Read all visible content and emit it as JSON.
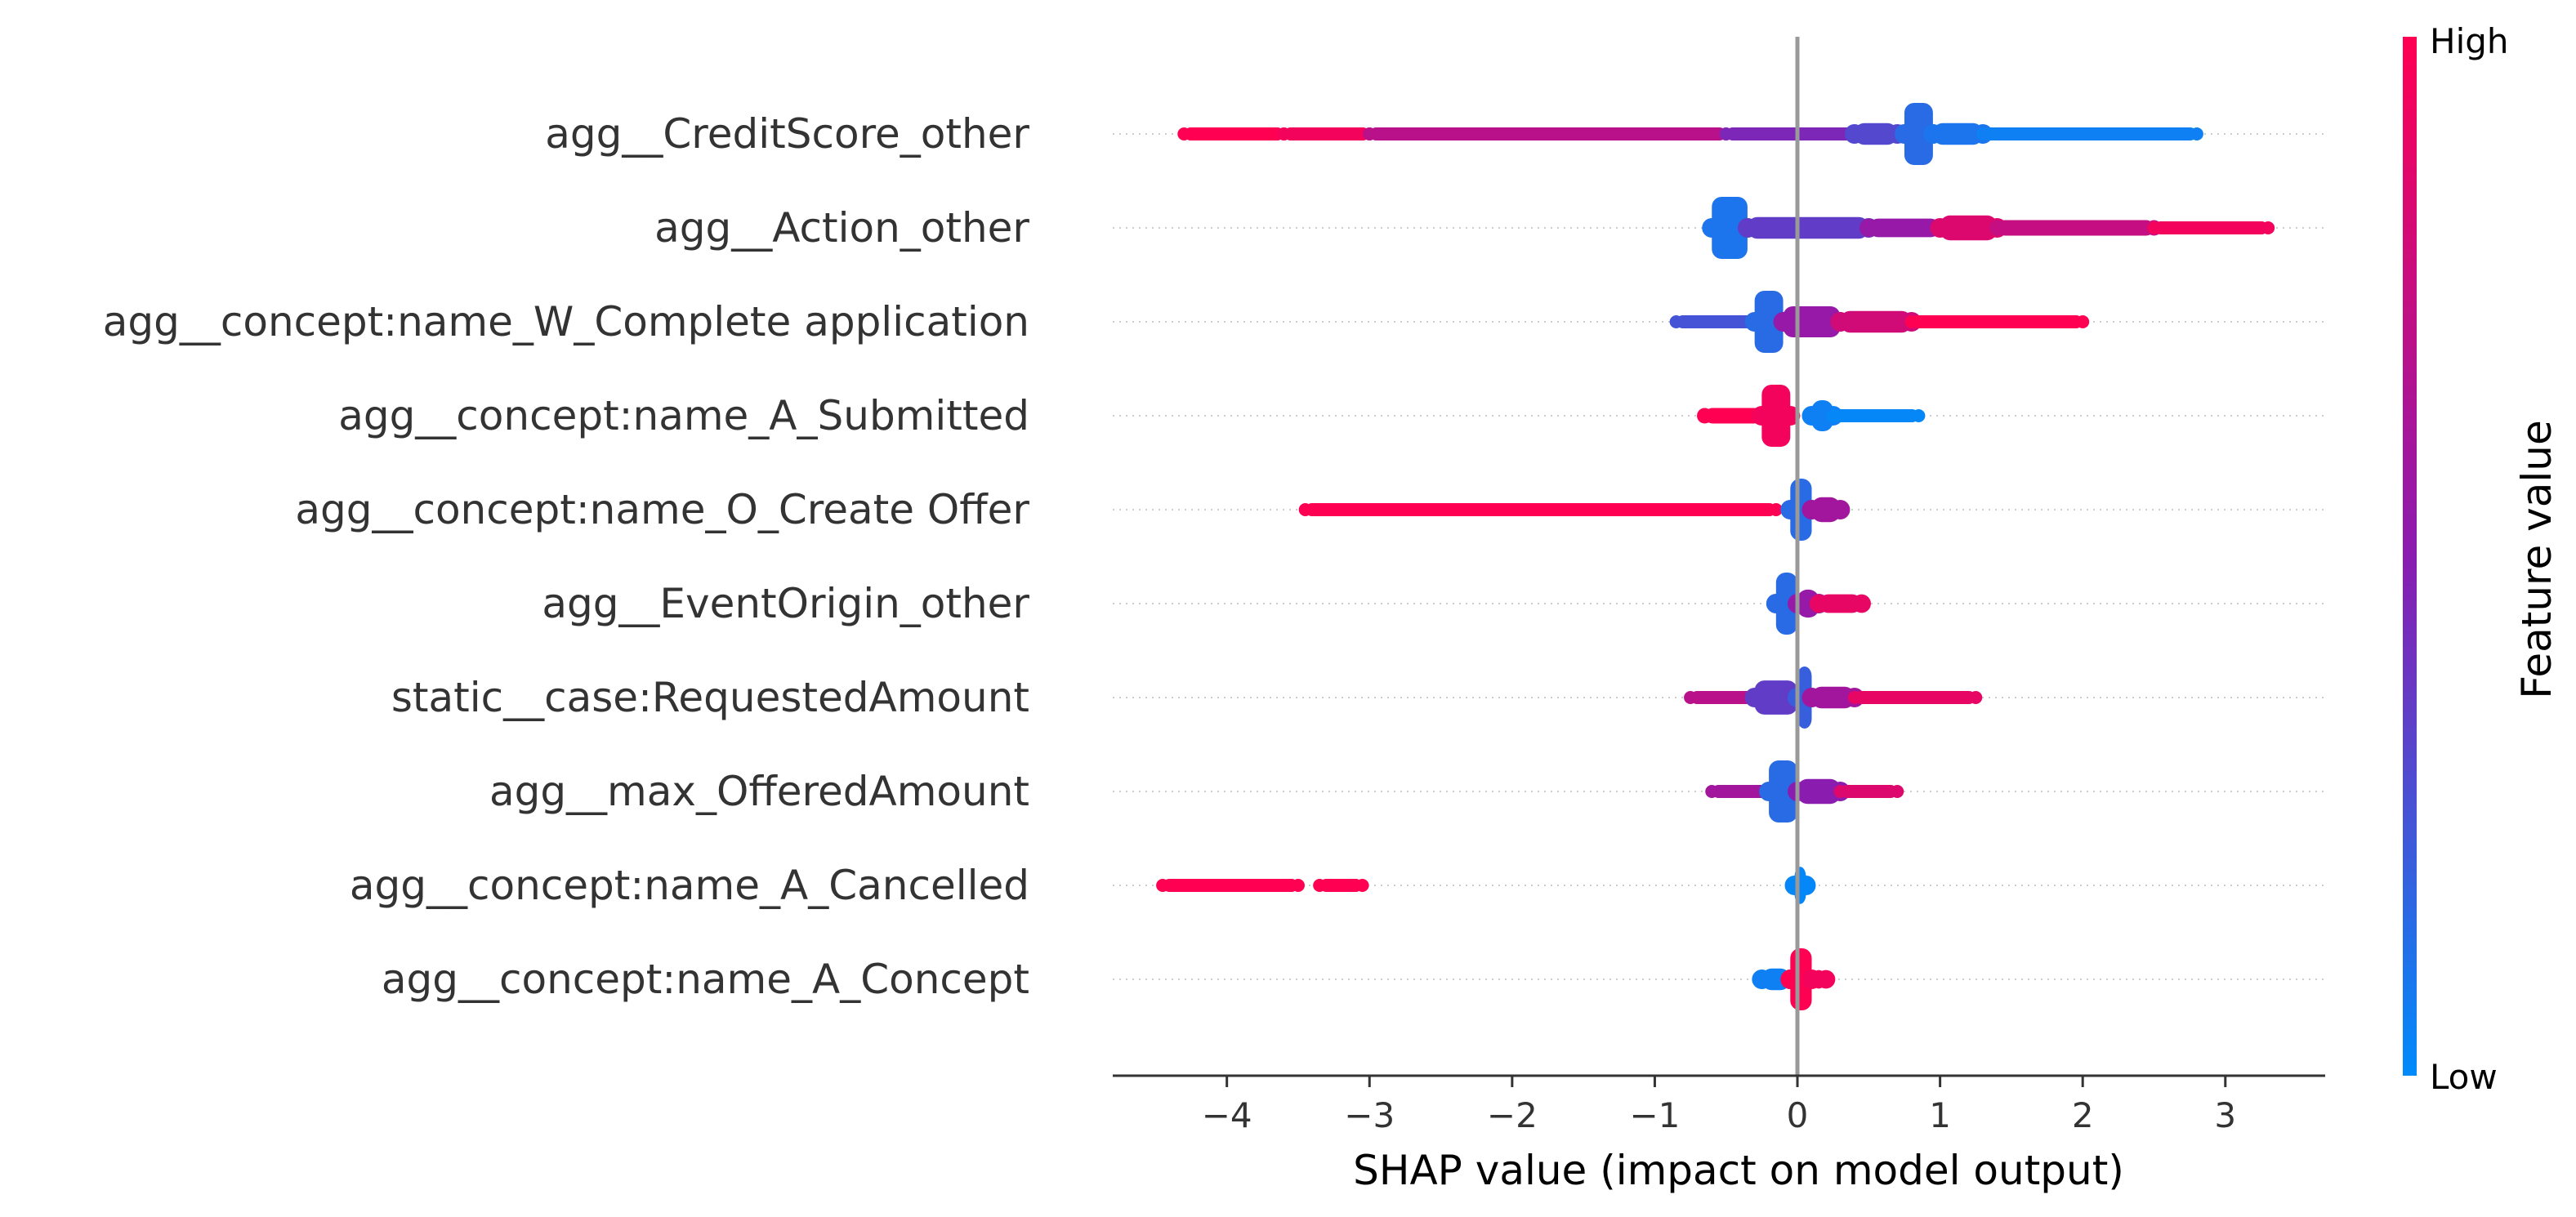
{
  "chart_data": {
    "type": "scatter",
    "subtype": "shap-beeswarm-summary",
    "title": "",
    "xlabel": "SHAP value (impact on model output)",
    "xlim": [
      -4.8,
      3.7
    ],
    "xticks": [
      -4,
      -3,
      -2,
      -1,
      0,
      1,
      2,
      3
    ],
    "xtick_labels": [
      "−4",
      "−3",
      "−2",
      "−1",
      "0",
      "1",
      "2",
      "3"
    ],
    "zero_line": 0,
    "grid": "dotted horizontal per feature row",
    "colorbar": {
      "label": "Feature value",
      "high_label": "High",
      "low_label": "Low",
      "high_color": "#ff0052",
      "mid_color": "#8a1cb0",
      "low_color": "#008bfb",
      "placement": "right"
    },
    "features": [
      {
        "name": "agg__CreditScore_other",
        "segments": [
          {
            "from": -4.3,
            "to": -3.6,
            "value": 1.0,
            "spread": 0.1
          },
          {
            "from": -3.6,
            "to": -3.0,
            "value": 0.95,
            "spread": 0.2
          },
          {
            "from": -3.0,
            "to": -0.5,
            "value": 0.7,
            "spread": 0.12
          },
          {
            "from": -0.5,
            "to": 0.4,
            "value": 0.45,
            "spread": 0.2
          },
          {
            "from": 0.4,
            "to": 0.7,
            "value": 0.3,
            "spread": 0.35
          },
          {
            "from": 0.75,
            "to": 0.95,
            "value": 0.15,
            "spread": 1.0
          },
          {
            "from": 0.95,
            "to": 1.3,
            "value": 0.1,
            "spread": 0.35
          },
          {
            "from": 1.3,
            "to": 2.8,
            "value": 0.05,
            "spread": 0.15
          }
        ]
      },
      {
        "name": "agg__Action_other",
        "segments": [
          {
            "from": -0.6,
            "to": -0.35,
            "value": 0.1,
            "spread": 1.0
          },
          {
            "from": -0.35,
            "to": 0.5,
            "value": 0.35,
            "spread": 0.35
          },
          {
            "from": 0.5,
            "to": 1.0,
            "value": 0.55,
            "spread": 0.3
          },
          {
            "from": 1.0,
            "to": 1.4,
            "value": 0.85,
            "spread": 0.4
          },
          {
            "from": 1.4,
            "to": 2.5,
            "value": 0.75,
            "spread": 0.25
          },
          {
            "from": 2.5,
            "to": 3.3,
            "value": 0.95,
            "spread": 0.15
          }
        ]
      },
      {
        "name": "agg__concept:name_W_Complete application",
        "segments": [
          {
            "from": -0.85,
            "to": -0.3,
            "value": 0.25,
            "spread": 0.2
          },
          {
            "from": -0.3,
            "to": -0.1,
            "value": 0.15,
            "spread": 1.0
          },
          {
            "from": -0.1,
            "to": 0.3,
            "value": 0.55,
            "spread": 0.5
          },
          {
            "from": 0.3,
            "to": 0.8,
            "value": 0.8,
            "spread": 0.35
          },
          {
            "from": 0.8,
            "to": 2.0,
            "value": 1.0,
            "spread": 0.18
          }
        ]
      },
      {
        "name": "agg__concept:name_A_Submitted",
        "segments": [
          {
            "from": -0.65,
            "to": -0.25,
            "value": 1.0,
            "spread": 0.25
          },
          {
            "from": -0.25,
            "to": -0.05,
            "value": 0.95,
            "spread": 1.0
          },
          {
            "from": 0.1,
            "to": 0.25,
            "value": 0.05,
            "spread": 0.5
          },
          {
            "from": 0.25,
            "to": 0.85,
            "value": 0.02,
            "spread": 0.2
          }
        ]
      },
      {
        "name": "agg__concept:name_O_Create Offer",
        "segments": [
          {
            "from": -3.45,
            "to": -0.15,
            "value": 1.0,
            "spread": 0.1
          },
          {
            "from": -0.05,
            "to": 0.1,
            "value": 0.15,
            "spread": 1.0
          },
          {
            "from": 0.1,
            "to": 0.3,
            "value": 0.6,
            "spread": 0.4
          }
        ]
      },
      {
        "name": "agg__EventOrigin_other",
        "segments": [
          {
            "from": -0.15,
            "to": 0.0,
            "value": 0.15,
            "spread": 1.0
          },
          {
            "from": 0.0,
            "to": 0.15,
            "value": 0.55,
            "spread": 0.45
          },
          {
            "from": 0.15,
            "to": 0.45,
            "value": 0.9,
            "spread": 0.3
          }
        ]
      },
      {
        "name": "static__case:RequestedAmount",
        "segments": [
          {
            "from": -0.75,
            "to": -0.3,
            "value": 0.7,
            "spread": 0.2
          },
          {
            "from": -0.3,
            "to": 0.0,
            "value": 0.35,
            "spread": 0.55
          },
          {
            "from": 0.0,
            "to": 0.1,
            "value": 0.2,
            "spread": 1.0
          },
          {
            "from": 0.1,
            "to": 0.4,
            "value": 0.6,
            "spread": 0.35
          },
          {
            "from": 0.4,
            "to": 1.25,
            "value": 0.9,
            "spread": 0.15
          }
        ]
      },
      {
        "name": "agg__max_OfferedAmount",
        "segments": [
          {
            "from": -0.6,
            "to": -0.2,
            "value": 0.6,
            "spread": 0.2
          },
          {
            "from": -0.2,
            "to": 0.0,
            "value": 0.15,
            "spread": 1.0
          },
          {
            "from": 0.0,
            "to": 0.3,
            "value": 0.5,
            "spread": 0.4
          },
          {
            "from": 0.3,
            "to": 0.7,
            "value": 0.85,
            "spread": 0.2
          }
        ]
      },
      {
        "name": "agg__concept:name_A_Cancelled",
        "segments": [
          {
            "from": -4.45,
            "to": -3.5,
            "value": 1.0,
            "spread": 0.18
          },
          {
            "from": -3.35,
            "to": -3.05,
            "value": 1.0,
            "spread": 0.15
          },
          {
            "from": -0.02,
            "to": 0.06,
            "value": 0.02,
            "spread": 0.6
          }
        ]
      },
      {
        "name": "agg__concept:name_A_Concept",
        "segments": [
          {
            "from": -0.25,
            "to": -0.05,
            "value": 0.05,
            "spread": 0.35
          },
          {
            "from": -0.05,
            "to": 0.1,
            "value": 1.0,
            "spread": 1.0
          },
          {
            "from": 0.1,
            "to": 0.2,
            "value": 0.95,
            "spread": 0.3
          }
        ]
      }
    ]
  }
}
